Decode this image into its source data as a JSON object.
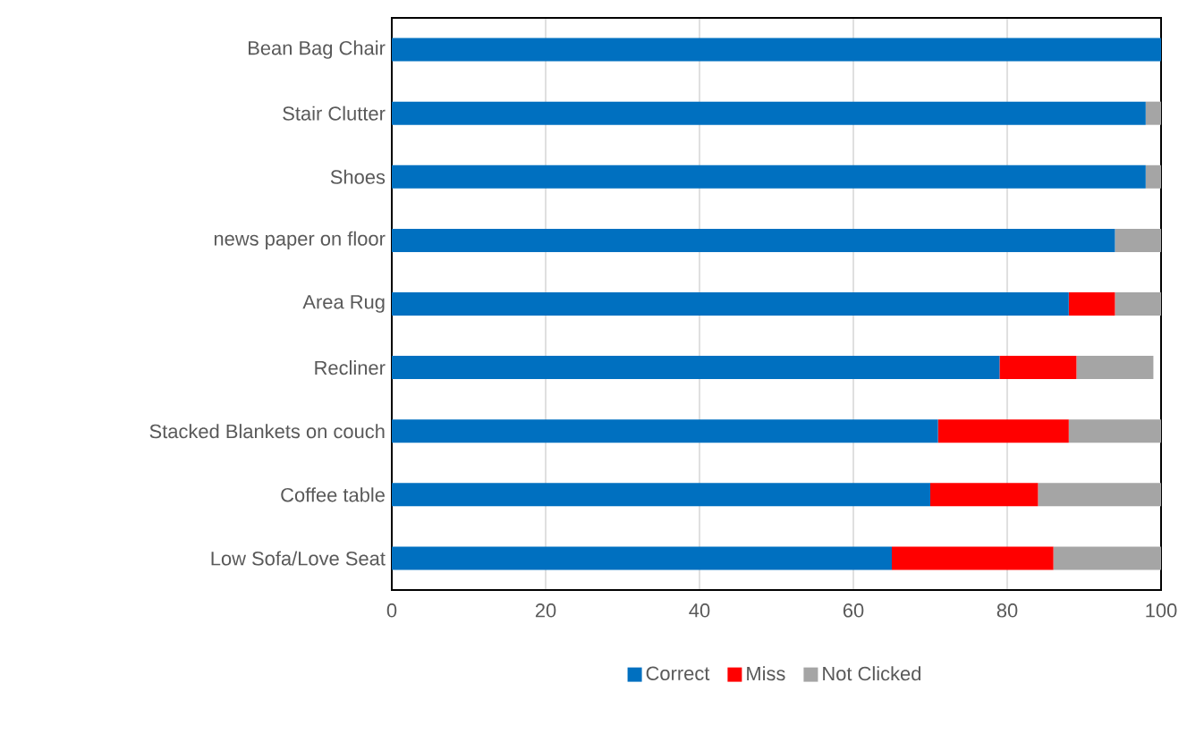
{
  "chart_data": {
    "type": "bar",
    "orientation": "horizontal",
    "stacked": true,
    "categories": [
      "Bean Bag Chair",
      "Stair Clutter",
      "Shoes",
      "news paper on floor",
      "Area Rug",
      "Recliner",
      "Stacked Blankets on couch",
      "Coffee table",
      "Low Sofa/Love Seat"
    ],
    "series": [
      {
        "name": "Correct",
        "color": "#0070c0",
        "values": [
          100,
          98,
          98,
          94,
          88,
          79,
          71,
          70,
          65
        ]
      },
      {
        "name": "Miss",
        "color": "#ff0000",
        "values": [
          0,
          0,
          0,
          0,
          6,
          10,
          17,
          14,
          21
        ]
      },
      {
        "name": "Not Clicked",
        "color": "#a5a5a5",
        "values": [
          0,
          2,
          2,
          6,
          6,
          10,
          12,
          16,
          14
        ]
      }
    ],
    "xlim": [
      0,
      100
    ],
    "xticks": [
      0,
      20,
      40,
      60,
      80,
      100
    ],
    "grid": "x",
    "legend": "bottom"
  }
}
